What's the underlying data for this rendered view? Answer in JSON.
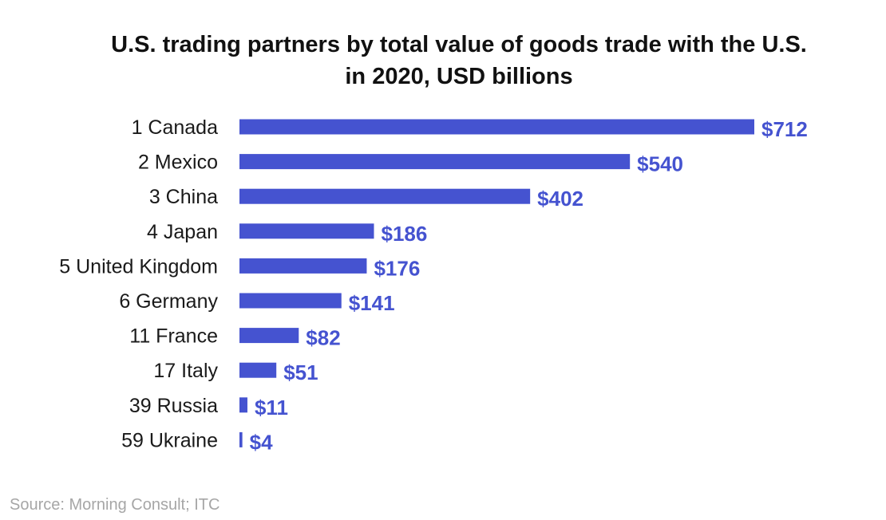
{
  "chart_data": {
    "type": "bar",
    "orientation": "horizontal",
    "title_line1": "U.S. trading partners by total value of goods trade with the U.S.",
    "title_line2": "in 2020, USD billions",
    "categories": [
      "1 Canada",
      "2 Mexico",
      "3 China",
      "4 Japan",
      "5 United Kingdom",
      "6 Germany",
      "11 France",
      "17 Italy",
      "39 Russia",
      "59 Ukraine"
    ],
    "values": [
      712,
      540,
      402,
      186,
      176,
      141,
      82,
      51,
      11,
      4
    ],
    "value_labels": [
      "$712",
      "$540",
      "$402",
      "$186",
      "$176",
      "$141",
      "$82",
      "$51",
      "$11",
      "$4"
    ],
    "xlim": [
      0,
      712
    ],
    "xlabel": "",
    "ylabel": "",
    "grid": false,
    "legend": "none",
    "bar_color": "#4553d0",
    "source": "Source: Morning Consult; ITC"
  }
}
